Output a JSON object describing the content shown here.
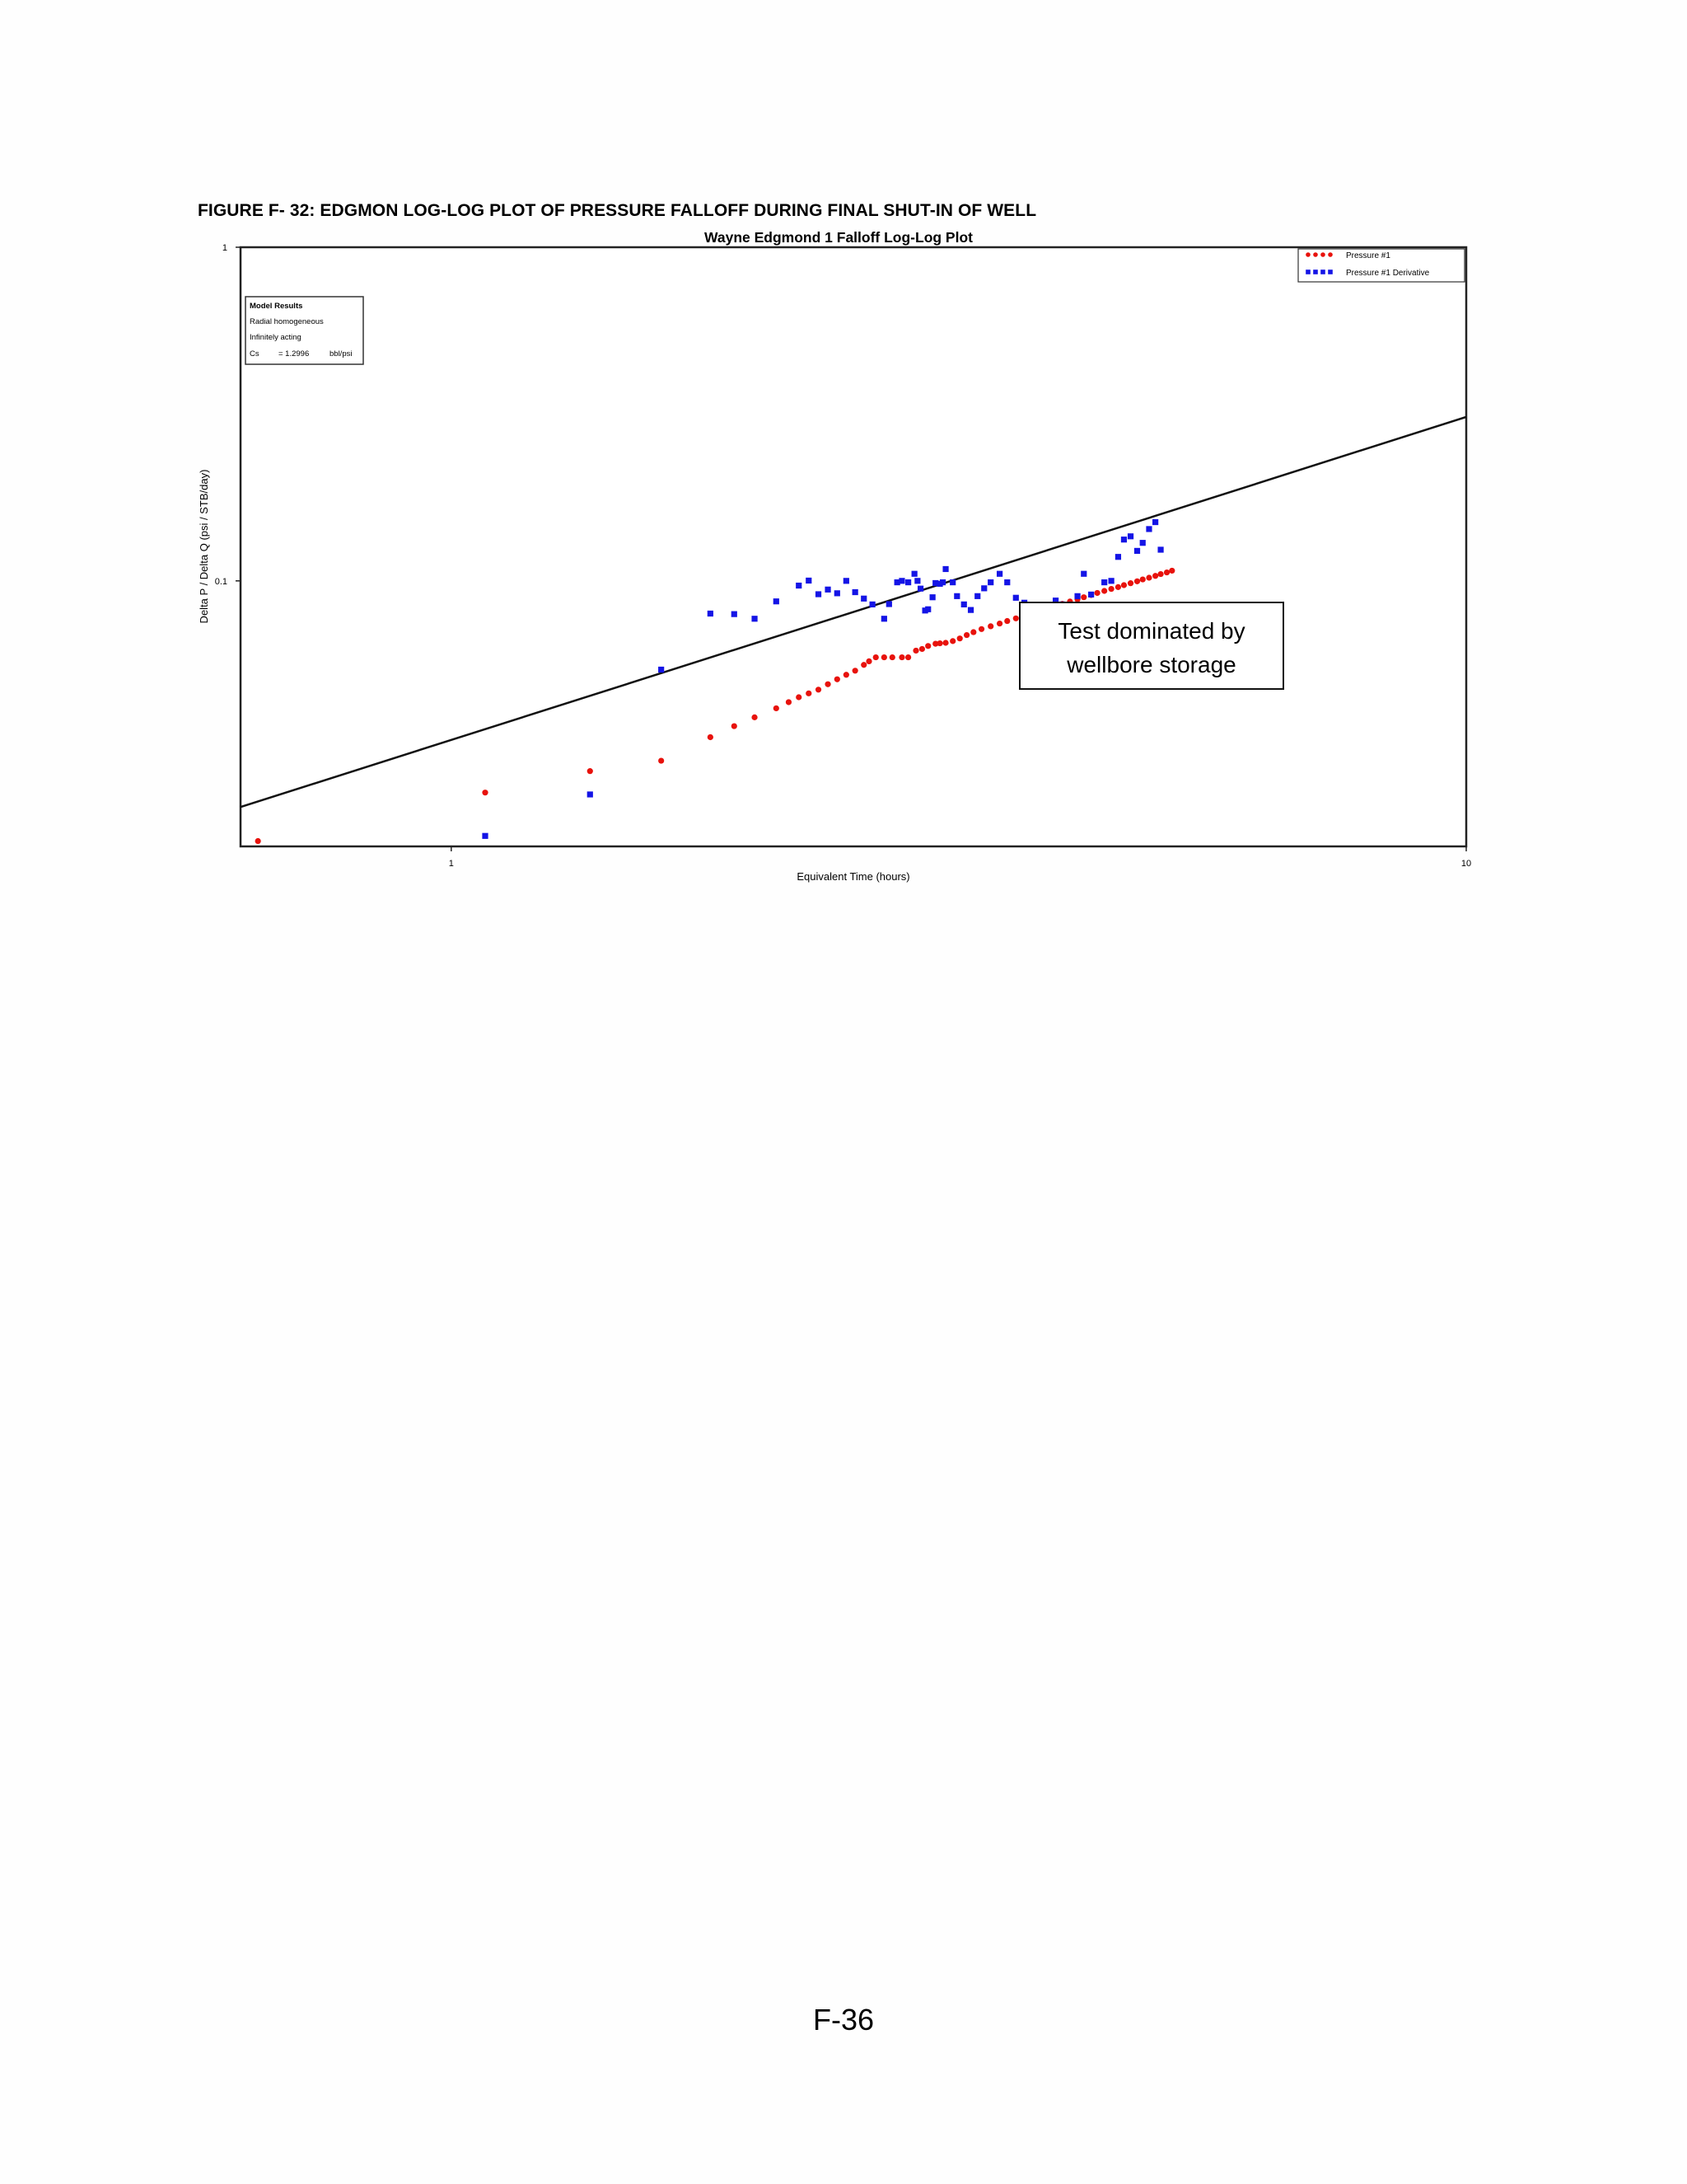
{
  "figure_caption": "FIGURE F- 32: EDGMON LOG-LOG PLOT OF PRESSURE FALLOFF DURING FINAL SHUT-IN OF WELL",
  "page_number": "F-36",
  "colors": {
    "pressure": "#e8120c",
    "derivative": "#1414e6",
    "axis": "#000000"
  },
  "chart_data": {
    "type": "scatter",
    "title": "Wayne Edgmond 1 Falloff Log-Log Plot",
    "xlabel": "Equivalent Time (hours)",
    "ylabel": "Delta P / Delta Q (psi / STB/day)",
    "x_scale": "log",
    "y_scale": "log",
    "xlim": [
      0.62,
      10
    ],
    "ylim": [
      0.016,
      1
    ],
    "x_ticks": [
      {
        "value": 1,
        "label": "1"
      },
      {
        "value": 10,
        "label": "10"
      }
    ],
    "y_ticks": [
      {
        "value": 0.1,
        "label": "0.1"
      },
      {
        "value": 1,
        "label": "1"
      }
    ],
    "grid": false,
    "legend": {
      "position": "top-right",
      "entries": [
        {
          "label": "Pressure #1",
          "series": 0
        },
        {
          "label": "Pressure #1 Derivative",
          "series": 1
        }
      ]
    },
    "model_results": {
      "heading": "Model Results",
      "lines": [
        "Radial homogeneous",
        "Infinitely acting",
        "Cs",
        "= 1.2996",
        "bbl/psi"
      ]
    },
    "annotation": {
      "lines": [
        "Test dominated by",
        "wellbore storage"
      ],
      "x": 5.2,
      "y": 0.065
    },
    "reference_line": {
      "from": {
        "x": 0.62,
        "y": 0.021
      },
      "to": {
        "x": 10,
        "y": 0.31
      }
    },
    "series": [
      {
        "name": "Pressure #1",
        "marker": "circle",
        "points": [
          [
            0.645,
            0.0166
          ],
          [
            1.08,
            0.0232
          ],
          [
            1.37,
            0.0269
          ],
          [
            1.61,
            0.0289
          ],
          [
            1.8,
            0.034
          ],
          [
            1.9,
            0.0367
          ],
          [
            1.99,
            0.039
          ],
          [
            2.09,
            0.0415
          ],
          [
            2.15,
            0.0433
          ],
          [
            2.2,
            0.0448
          ],
          [
            2.25,
            0.046
          ],
          [
            2.3,
            0.0472
          ],
          [
            2.35,
            0.049
          ],
          [
            2.4,
            0.0507
          ],
          [
            2.45,
            0.0523
          ],
          [
            2.5,
            0.0538
          ],
          [
            2.55,
            0.056
          ],
          [
            2.58,
            0.0574
          ],
          [
            2.62,
            0.059
          ],
          [
            2.67,
            0.059
          ],
          [
            2.72,
            0.059
          ],
          [
            2.78,
            0.059
          ],
          [
            2.82,
            0.059
          ],
          [
            2.87,
            0.0618
          ],
          [
            2.91,
            0.0625
          ],
          [
            2.95,
            0.0638
          ],
          [
            3.0,
            0.0648
          ],
          [
            3.03,
            0.065
          ],
          [
            3.07,
            0.0652
          ],
          [
            3.12,
            0.066
          ],
          [
            3.17,
            0.0672
          ],
          [
            3.22,
            0.0688
          ],
          [
            3.27,
            0.0702
          ],
          [
            3.33,
            0.0717
          ],
          [
            3.4,
            0.0731
          ],
          [
            3.47,
            0.0745
          ],
          [
            3.53,
            0.0758
          ],
          [
            3.6,
            0.0772
          ],
          [
            3.67,
            0.0785
          ],
          [
            3.74,
            0.0799
          ],
          [
            3.8,
            0.0813
          ],
          [
            3.87,
            0.0827
          ],
          [
            3.94,
            0.084
          ],
          [
            4.0,
            0.0853
          ],
          [
            4.07,
            0.0867
          ],
          [
            4.14,
            0.088
          ],
          [
            4.2,
            0.0893
          ],
          [
            4.27,
            0.0907
          ],
          [
            4.33,
            0.092
          ],
          [
            4.4,
            0.0933
          ],
          [
            4.47,
            0.0946
          ],
          [
            4.54,
            0.0958
          ],
          [
            4.6,
            0.0971
          ],
          [
            4.67,
            0.0984
          ],
          [
            4.74,
            0.0997
          ],
          [
            4.8,
            0.101
          ],
          [
            4.87,
            0.1022
          ],
          [
            4.94,
            0.1035
          ],
          [
            5.0,
            0.1048
          ],
          [
            5.07,
            0.106
          ],
          [
            5.13,
            0.1073
          ]
        ]
      },
      {
        "name": "Pressure #1 Derivative",
        "marker": "square",
        "points": [
          [
            1.08,
            0.0172
          ],
          [
            1.37,
            0.0229
          ],
          [
            1.61,
            0.0542
          ],
          [
            1.8,
            0.0798
          ],
          [
            1.9,
            0.0795
          ],
          [
            1.99,
            0.077
          ],
          [
            2.09,
            0.0868
          ],
          [
            2.2,
            0.0968
          ],
          [
            2.25,
            0.1002
          ],
          [
            2.3,
            0.0912
          ],
          [
            2.35,
            0.0942
          ],
          [
            2.4,
            0.0918
          ],
          [
            2.45,
            0.1
          ],
          [
            2.5,
            0.0925
          ],
          [
            2.55,
            0.0885
          ],
          [
            2.6,
            0.085
          ],
          [
            2.67,
            0.077
          ],
          [
            2.7,
            0.0852
          ],
          [
            2.75,
            0.099
          ],
          [
            2.78,
            0.1
          ],
          [
            2.82,
            0.099
          ],
          [
            2.86,
            0.105
          ],
          [
            2.88,
            0.1
          ],
          [
            2.9,
            0.0948
          ],
          [
            2.93,
            0.0815
          ],
          [
            2.95,
            0.0822
          ],
          [
            2.98,
            0.0893
          ],
          [
            3.0,
            0.0985
          ],
          [
            3.03,
            0.098
          ],
          [
            3.05,
            0.099
          ],
          [
            3.07,
            0.1085
          ],
          [
            3.12,
            0.099
          ],
          [
            3.15,
            0.09
          ],
          [
            3.2,
            0.085
          ],
          [
            3.25,
            0.0818
          ],
          [
            3.3,
            0.09
          ],
          [
            3.35,
            0.095
          ],
          [
            3.4,
            0.099
          ],
          [
            3.47,
            0.105
          ],
          [
            3.53,
            0.099
          ],
          [
            3.6,
            0.089
          ],
          [
            3.67,
            0.086
          ],
          [
            3.74,
            0.082
          ],
          [
            3.8,
            0.077
          ],
          [
            3.87,
            0.083
          ],
          [
            3.94,
            0.0873
          ],
          [
            4.0,
            0.085
          ],
          [
            4.07,
            0.08
          ],
          [
            4.14,
            0.09
          ],
          [
            4.2,
            0.105
          ],
          [
            4.27,
            0.091
          ],
          [
            4.33,
            0.082
          ],
          [
            4.4,
            0.099
          ],
          [
            4.47,
            0.1
          ],
          [
            4.54,
            0.118
          ],
          [
            4.6,
            0.133
          ],
          [
            4.67,
            0.136
          ],
          [
            4.74,
            0.123
          ],
          [
            4.8,
            0.13
          ],
          [
            4.87,
            0.143
          ],
          [
            4.94,
            0.15
          ],
          [
            5.0,
            0.124
          ]
        ]
      }
    ]
  }
}
